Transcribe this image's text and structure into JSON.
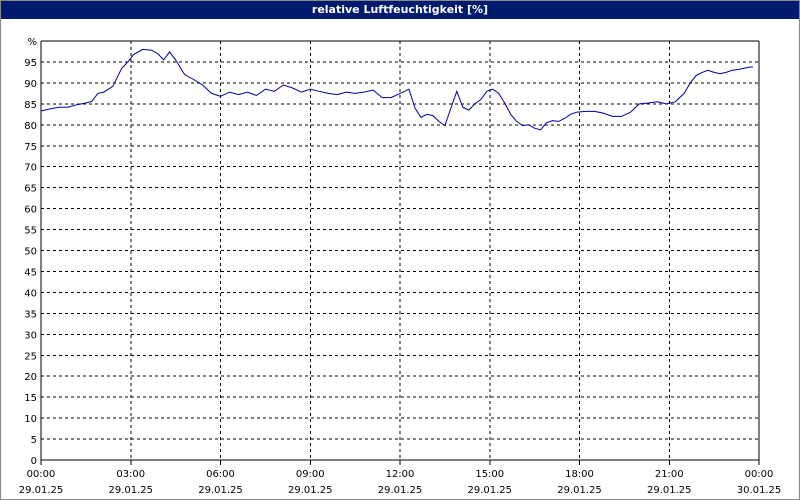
{
  "chart_data": {
    "type": "line",
    "title": "relative Luftfeuchtigkeit [%]",
    "ylabel": "%",
    "ylim": [
      0,
      100
    ],
    "yticks": [
      0,
      5,
      10,
      15,
      20,
      25,
      30,
      35,
      40,
      45,
      50,
      55,
      60,
      65,
      70,
      75,
      80,
      85,
      90,
      95
    ],
    "xlim": [
      0,
      24
    ],
    "xticks": [
      {
        "time": "00:00",
        "date": "29.01.25"
      },
      {
        "time": "03:00",
        "date": "29.01.25"
      },
      {
        "time": "06:00",
        "date": "29.01.25"
      },
      {
        "time": "09:00",
        "date": "29.01.25"
      },
      {
        "time": "12:00",
        "date": "29.01.25"
      },
      {
        "time": "15:00",
        "date": "29.01.25"
      },
      {
        "time": "18:00",
        "date": "29.01.25"
      },
      {
        "time": "21:00",
        "date": "29.01.25"
      },
      {
        "time": "00:00",
        "date": "30.01.25"
      }
    ],
    "grid": true,
    "series": [
      {
        "color": "#000099",
        "x": [
          0.0,
          0.3,
          0.6,
          0.9,
          1.2,
          1.5,
          1.7,
          1.9,
          2.1,
          2.4,
          2.7,
          2.9,
          3.1,
          3.4,
          3.7,
          3.9,
          4.1,
          4.3,
          4.5,
          4.8,
          5.1,
          5.4,
          5.7,
          6.0,
          6.3,
          6.6,
          6.9,
          7.2,
          7.5,
          7.8,
          8.1,
          8.4,
          8.7,
          9.0,
          9.3,
          9.6,
          9.9,
          10.2,
          10.5,
          10.8,
          11.1,
          11.4,
          11.7,
          12.0,
          12.3,
          12.5,
          12.7,
          12.9,
          13.1,
          13.3,
          13.5,
          13.7,
          13.9,
          14.1,
          14.3,
          14.5,
          14.7,
          14.9,
          15.1,
          15.3,
          15.5,
          15.7,
          15.9,
          16.1,
          16.3,
          16.5,
          16.7,
          16.9,
          17.1,
          17.3,
          17.5,
          17.7,
          17.9,
          18.2,
          18.5,
          18.8,
          19.1,
          19.4,
          19.7,
          20.0,
          20.3,
          20.6,
          20.9,
          21.2,
          21.5,
          21.7,
          21.9,
          22.1,
          22.3,
          22.5,
          22.7,
          22.9,
          23.1,
          23.3,
          23.5,
          23.7,
          23.8
        ],
        "values": [
          83.3,
          83.8,
          84.2,
          84.2,
          84.8,
          85.2,
          85.6,
          87.5,
          87.8,
          89.2,
          93.5,
          95.0,
          96.8,
          98.0,
          97.8,
          97.0,
          95.5,
          97.4,
          95.5,
          92.0,
          90.8,
          89.5,
          87.5,
          86.8,
          87.8,
          87.2,
          87.8,
          87.0,
          88.5,
          88.0,
          89.5,
          88.8,
          87.8,
          88.5,
          88.0,
          87.5,
          87.2,
          87.8,
          87.5,
          87.8,
          88.3,
          86.5,
          86.5,
          87.5,
          88.5,
          84.0,
          81.8,
          82.5,
          82.2,
          80.8,
          79.8,
          84.0,
          88.0,
          84.2,
          83.5,
          85.0,
          86.0,
          88.0,
          88.5,
          87.5,
          85.2,
          82.5,
          80.8,
          79.8,
          80.0,
          79.2,
          78.8,
          80.5,
          81.0,
          80.8,
          81.5,
          82.5,
          83.0,
          83.2,
          83.2,
          82.8,
          82.0,
          82.0,
          83.0,
          85.0,
          85.2,
          85.5,
          85.0,
          85.5,
          87.5,
          90.0,
          91.8,
          92.5,
          93.0,
          92.5,
          92.2,
          92.5,
          93.0,
          93.2,
          93.5,
          93.8,
          93.8
        ]
      }
    ]
  }
}
